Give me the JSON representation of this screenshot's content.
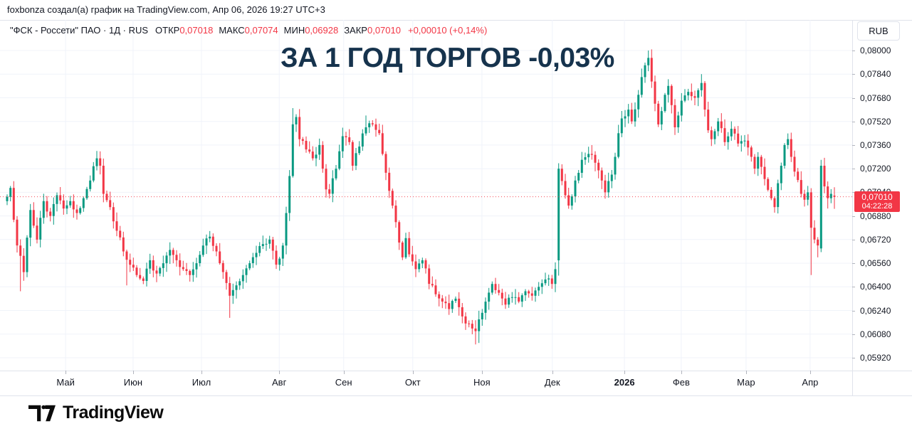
{
  "attribution": {
    "text": "foxbonza создал(а) график на TradingView.com, Апр 06, 2026 19:27 UTC+3"
  },
  "legend": {
    "symbol_title": "\"ФСК - Россети\" ПАО · 1Д · RUS",
    "ohlc": [
      {
        "label": "ОТКР",
        "value": "0,07018"
      },
      {
        "label": "МАКС",
        "value": "0,07074"
      },
      {
        "label": "МИН",
        "value": "0,06928"
      },
      {
        "label": "ЗАКР",
        "value": "0,07010"
      }
    ],
    "change": "+0,00010 (+0,14%)"
  },
  "overlay_title": "ЗА 1 ГОД ТОРГОВ -0,03%",
  "price_scale": {
    "currency_button": "RUB",
    "last_price_badge": {
      "price": "0,07010",
      "countdown": "04:22:28",
      "color": "#f23645"
    }
  },
  "logo": {
    "text": "TradingView"
  },
  "colors": {
    "up": "#089981",
    "down": "#f23645",
    "grid": "#f0f3fa",
    "text": "#131722",
    "border": "#e0e3eb",
    "title": "#16334d",
    "last_price_line": "#f23645"
  },
  "chart_data": {
    "type": "candlestick",
    "symbol": "\"ФСК - Россети\" ПАО",
    "timeframe": "1Д",
    "exchange": "RUS",
    "currency": "RUB",
    "bar_count": 250,
    "first_open": 0.0698,
    "last_price": 0.0701,
    "last_bar": {
      "open": 0.07018,
      "high": 0.07074,
      "low": 0.06928,
      "close": 0.0701
    },
    "grid": true,
    "last_price_line": {
      "value": 0.0701,
      "style": "dotted"
    },
    "y_ticks": [
      {
        "label": "0,08000",
        "value": 0.08
      },
      {
        "label": "0,07840",
        "value": 0.0784
      },
      {
        "label": "0,07680",
        "value": 0.0768
      },
      {
        "label": "0,07520",
        "value": 0.0752
      },
      {
        "label": "0,07360",
        "value": 0.0736
      },
      {
        "label": "0,07200",
        "value": 0.072
      },
      {
        "label": "0,07040",
        "value": 0.0704
      },
      {
        "label": "0,06880",
        "value": 0.0688
      },
      {
        "label": "0,06720",
        "value": 0.0672
      },
      {
        "label": "0,06560",
        "value": 0.0656
      },
      {
        "label": "0,06400",
        "value": 0.064
      },
      {
        "label": "0,06240",
        "value": 0.0624
      },
      {
        "label": "0,06080",
        "value": 0.0608
      },
      {
        "label": "0,05920",
        "value": 0.0592
      }
    ],
    "x_labels": [
      {
        "text": "Май",
        "t": 17.6,
        "bold": false
      },
      {
        "text": "Июн",
        "t": 37.9,
        "bold": false
      },
      {
        "text": "Июл",
        "t": 58.5,
        "bold": false
      },
      {
        "text": "Авг",
        "t": 81.9,
        "bold": false
      },
      {
        "text": "Сен",
        "t": 101.3,
        "bold": false
      },
      {
        "text": "Окт",
        "t": 122.1,
        "bold": false
      },
      {
        "text": "Ноя",
        "t": 142.9,
        "bold": false
      },
      {
        "text": "Дек",
        "t": 164.1,
        "bold": false
      },
      {
        "text": "2026",
        "t": 185.8,
        "bold": true
      },
      {
        "text": "Фев",
        "t": 202.9,
        "bold": false
      },
      {
        "text": "Мар",
        "t": 222.4,
        "bold": false
      },
      {
        "text": "Апр",
        "t": 241.7,
        "bold": false
      }
    ],
    "price_path_anchors": [
      [
        0,
        0.0701
      ],
      [
        1,
        0.0707
      ],
      [
        3,
        0.0668
      ],
      [
        5,
        0.065
      ],
      [
        7,
        0.0692
      ],
      [
        9,
        0.0672
      ],
      [
        11,
        0.0698
      ],
      [
        13,
        0.0688
      ],
      [
        15,
        0.0702
      ],
      [
        17,
        0.0693
      ],
      [
        19,
        0.0698
      ],
      [
        21,
        0.069
      ],
      [
        23,
        0.07
      ],
      [
        25,
        0.0712
      ],
      [
        27,
        0.0727
      ],
      [
        28,
        0.0722
      ],
      [
        29,
        0.0703
      ],
      [
        31,
        0.0694
      ],
      [
        33,
        0.0678
      ],
      [
        35,
        0.0664
      ],
      [
        37,
        0.0655
      ],
      [
        39,
        0.0648
      ],
      [
        41,
        0.0644
      ],
      [
        43,
        0.0658
      ],
      [
        45,
        0.0649
      ],
      [
        47,
        0.0656
      ],
      [
        49,
        0.0665
      ],
      [
        51,
        0.0658
      ],
      [
        53,
        0.0652
      ],
      [
        55,
        0.0648
      ],
      [
        57,
        0.0656
      ],
      [
        59,
        0.0668
      ],
      [
        61,
        0.0674
      ],
      [
        63,
        0.0664
      ],
      [
        65,
        0.065
      ],
      [
        67,
        0.0634
      ],
      [
        69,
        0.0641
      ],
      [
        71,
        0.0648
      ],
      [
        73,
        0.0656
      ],
      [
        75,
        0.0663
      ],
      [
        77,
        0.0669
      ],
      [
        79,
        0.0672
      ],
      [
        81,
        0.0655
      ],
      [
        83,
        0.0668
      ],
      [
        84,
        0.069
      ],
      [
        85,
        0.0715
      ],
      [
        86,
        0.075
      ],
      [
        87,
        0.0755
      ],
      [
        88,
        0.074
      ],
      [
        90,
        0.0733
      ],
      [
        92,
        0.0727
      ],
      [
        94,
        0.0736
      ],
      [
        95,
        0.072
      ],
      [
        96,
        0.0706
      ],
      [
        97,
        0.0703
      ],
      [
        99,
        0.072
      ],
      [
        101,
        0.0742
      ],
      [
        103,
        0.0738
      ],
      [
        104,
        0.0722
      ],
      [
        106,
        0.0735
      ],
      [
        108,
        0.0748
      ],
      [
        110,
        0.075
      ],
      [
        112,
        0.0744
      ],
      [
        113,
        0.073
      ],
      [
        115,
        0.0705
      ],
      [
        116,
        0.0695
      ],
      [
        118,
        0.067
      ],
      [
        119,
        0.066
      ],
      [
        120,
        0.0673
      ],
      [
        121,
        0.0662
      ],
      [
        123,
        0.0652
      ],
      [
        125,
        0.0658
      ],
      [
        127,
        0.0642
      ],
      [
        129,
        0.0635
      ],
      [
        131,
        0.063
      ],
      [
        133,
        0.0625
      ],
      [
        135,
        0.0632
      ],
      [
        137,
        0.062
      ],
      [
        139,
        0.0615
      ],
      [
        141,
        0.061
      ],
      [
        142,
        0.0618
      ],
      [
        144,
        0.063
      ],
      [
        146,
        0.0642
      ],
      [
        148,
        0.0636
      ],
      [
        150,
        0.0628
      ],
      [
        152,
        0.0633
      ],
      [
        154,
        0.063
      ],
      [
        156,
        0.0637
      ],
      [
        158,
        0.0634
      ],
      [
        160,
        0.064
      ],
      [
        162,
        0.0645
      ],
      [
        164,
        0.0642
      ],
      [
        165,
        0.0652
      ],
      [
        166,
        0.072
      ],
      [
        168,
        0.0702
      ],
      [
        169,
        0.0695
      ],
      [
        171,
        0.0712
      ],
      [
        173,
        0.0726
      ],
      [
        175,
        0.073
      ],
      [
        177,
        0.0724
      ],
      [
        179,
        0.0712
      ],
      [
        180,
        0.0704
      ],
      [
        182,
        0.0716
      ],
      [
        183,
        0.0728
      ],
      [
        184,
        0.0744
      ],
      [
        185,
        0.0754
      ],
      [
        187,
        0.076
      ],
      [
        188,
        0.0752
      ],
      [
        190,
        0.077
      ],
      [
        191,
        0.0782
      ],
      [
        192,
        0.079
      ],
      [
        193,
        0.0795
      ],
      [
        194,
        0.0779
      ],
      [
        195,
        0.0764
      ],
      [
        196,
        0.075
      ],
      [
        197,
        0.0759
      ],
      [
        198,
        0.077
      ],
      [
        199,
        0.0776
      ],
      [
        200,
        0.0763
      ],
      [
        201,
        0.0748
      ],
      [
        202,
        0.0756
      ],
      [
        203,
        0.0766
      ],
      [
        205,
        0.0772
      ],
      [
        207,
        0.0768
      ],
      [
        209,
        0.0778
      ],
      [
        210,
        0.076
      ],
      [
        211,
        0.0746
      ],
      [
        212,
        0.074
      ],
      [
        214,
        0.0752
      ],
      [
        216,
        0.0738
      ],
      [
        218,
        0.0747
      ],
      [
        220,
        0.0737
      ],
      [
        222,
        0.0739
      ],
      [
        224,
        0.0728
      ],
      [
        225,
        0.072
      ],
      [
        226,
        0.0728
      ],
      [
        228,
        0.0713
      ],
      [
        230,
        0.07
      ],
      [
        231,
        0.0694
      ],
      [
        233,
        0.0722
      ],
      [
        234,
        0.0736
      ],
      [
        235,
        0.074
      ],
      [
        236,
        0.0728
      ],
      [
        237,
        0.0718
      ],
      [
        239,
        0.0703
      ],
      [
        240,
        0.0699
      ],
      [
        241,
        0.0704
      ],
      [
        242,
        0.068
      ],
      [
        243,
        0.0672
      ],
      [
        244,
        0.0668
      ],
      [
        245,
        0.0722
      ],
      [
        246,
        0.0708
      ],
      [
        247,
        0.07
      ],
      [
        248,
        0.0703
      ],
      [
        249,
        0.0701
      ]
    ],
    "wick_overrides": [
      {
        "t": 4,
        "low": 0.0637
      },
      {
        "t": 27,
        "high": 0.0732
      },
      {
        "t": 36,
        "low": 0.0641
      },
      {
        "t": 67,
        "low": 0.0619
      },
      {
        "t": 86,
        "high": 0.0761
      },
      {
        "t": 108,
        "high": 0.0756
      },
      {
        "t": 141,
        "low": 0.0601
      },
      {
        "t": 142,
        "low": 0.0602
      },
      {
        "t": 166,
        "open": 0.0658
      },
      {
        "t": 193,
        "high": 0.08
      },
      {
        "t": 209,
        "high": 0.0784
      },
      {
        "t": 242,
        "low": 0.0648
      },
      {
        "t": 244,
        "low": 0.066
      },
      {
        "t": 245,
        "open": 0.0666,
        "high": 0.0726
      },
      {
        "t": 247,
        "low": 0.0693
      },
      {
        "t": 249,
        "open": 0.07018,
        "high": 0.07074,
        "low": 0.06928,
        "close": 0.0701
      }
    ]
  }
}
